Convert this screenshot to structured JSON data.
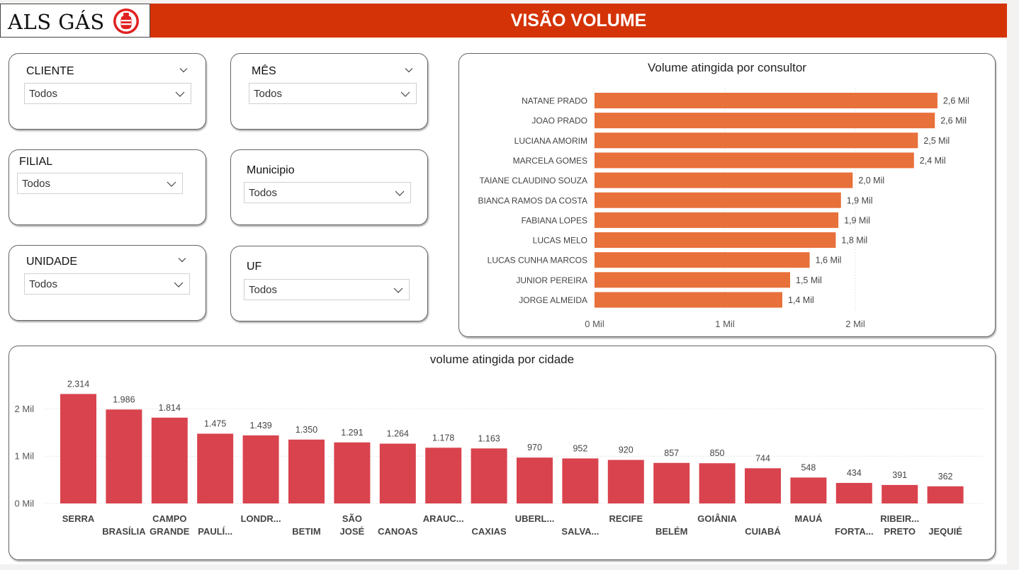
{
  "header": {
    "logo_text": "ALS GÁS",
    "logo_icon": "gas-cylinder-icon",
    "title": "VISÃO VOLUME",
    "bar_color": "#d43307"
  },
  "slicers": [
    {
      "key": "cliente",
      "label": "CLIENTE",
      "value": "Todos",
      "header_chevron": true
    },
    {
      "key": "mes",
      "label": "MÊS",
      "value": "Todos",
      "header_chevron": true
    },
    {
      "key": "filial",
      "label": "FILIAL",
      "value": "Todos",
      "header_chevron": false
    },
    {
      "key": "municipio",
      "label": "Municipio",
      "value": "Todos",
      "header_chevron": false
    },
    {
      "key": "unidade",
      "label": "UNIDADE",
      "value": "Todos",
      "header_chevron": true
    },
    {
      "key": "uf",
      "label": "UF",
      "value": "Todos",
      "header_chevron": false
    }
  ],
  "chart_data": [
    {
      "type": "bar",
      "orientation": "horizontal",
      "title": "Volume atingida por consultor",
      "color": "#e8703a",
      "categories": [
        "NATANE PRADO",
        "JOAO PRADO",
        "LUCIANA AMORIM",
        "MARCELA GOMES",
        "TAIANE CLAUDINO SOUZA",
        "BIANCA RAMOS DA COSTA",
        "FABIANA LOPES",
        "LUCAS MELO",
        "LUCAS CUNHA MARCOS",
        "JUNIOR PEREIRA",
        "JORGE ALMEIDA"
      ],
      "values": [
        2630,
        2610,
        2480,
        2450,
        1980,
        1890,
        1870,
        1850,
        1650,
        1500,
        1440
      ],
      "data_labels": [
        "2,6 Mil",
        "2,6 Mil",
        "2,5 Mil",
        "2,4 Mil",
        "2,0 Mil",
        "1,9 Mil",
        "1,9 Mil",
        "1,8 Mil",
        "1,6 Mil",
        "1,5 Mil",
        "1,4 Mil"
      ],
      "x_ticks": [
        0,
        1000,
        2000
      ],
      "x_tick_labels": [
        "0 Mil",
        "1 Mil",
        "2 Mil"
      ],
      "xlim": [
        0,
        2800
      ],
      "grid": true
    },
    {
      "type": "bar",
      "orientation": "vertical",
      "title": "volume atingida por cidade",
      "color": "#d9434e",
      "categories": [
        "SERRA",
        "BRASÍLIA",
        "CAMPO GRANDE",
        "PAULÍ...",
        "LONDR...",
        "BETIM",
        "SÃO JOSÉ",
        "CANOAS",
        "ARAUC...",
        "CAXIAS",
        "UBERL...",
        "SALVA...",
        "RECIFE",
        "BELÉM",
        "GOIÂNIA",
        "CUIABÁ",
        "MAUÁ",
        "FORTA...",
        "RIBEIR... PRETO",
        "JEQUIÉ"
      ],
      "values": [
        2314,
        1986,
        1814,
        1475,
        1439,
        1350,
        1291,
        1264,
        1178,
        1163,
        970,
        952,
        920,
        857,
        850,
        744,
        548,
        434,
        391,
        362
      ],
      "data_labels": [
        "2.314",
        "1.986",
        "1.814",
        "1.475",
        "1.439",
        "1.350",
        "1.291",
        "1.264",
        "1.178",
        "1.163",
        "970",
        "952",
        "920",
        "857",
        "850",
        "744",
        "548",
        "434",
        "391",
        "362"
      ],
      "y_ticks": [
        0,
        1000,
        2000
      ],
      "y_tick_labels": [
        "0 Mil",
        "1 Mil",
        "2 Mil"
      ],
      "ylim": [
        0,
        2400
      ],
      "grid": true
    }
  ]
}
